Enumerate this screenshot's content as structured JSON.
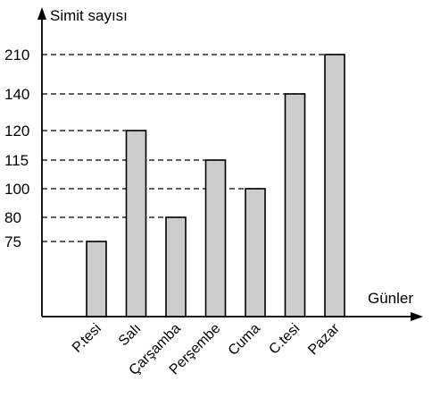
{
  "chart_data": {
    "type": "bar",
    "ylabel": "Simit sayısı",
    "xlabel": "Günler",
    "categories": [
      "P.tesi",
      "Salı",
      "Çarşamba",
      "Perşembe",
      "Cuma",
      "C.tesi",
      "Pazar"
    ],
    "values": [
      75,
      120,
      80,
      115,
      100,
      140,
      210
    ],
    "yticks": [
      75,
      80,
      100,
      115,
      120,
      140,
      210
    ],
    "ytick_labels": [
      "75",
      "80",
      "100",
      "115",
      "120",
      "140",
      "210"
    ],
    "bar_color": "#cccccc",
    "grid": false,
    "dashed_guides": true
  }
}
